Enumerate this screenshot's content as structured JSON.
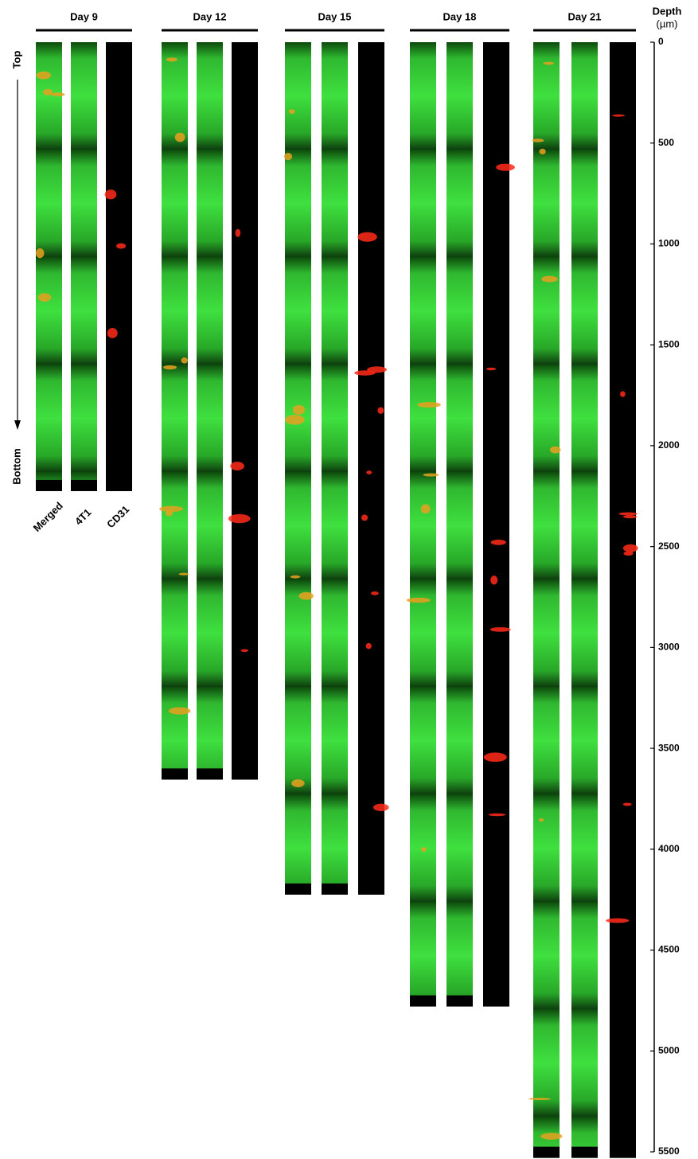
{
  "figure": {
    "panels": [
      {
        "label": "Day 9",
        "depth": 2225
      },
      {
        "label": "Day 12",
        "depth": 3655
      },
      {
        "label": "Day 15",
        "depth": 4225
      },
      {
        "label": "Day 18",
        "depth": 4780
      },
      {
        "label": "Day 21",
        "depth": 5530
      }
    ],
    "channels": [
      "Merged",
      "4T1",
      "CD31"
    ],
    "direction": {
      "top": "Top",
      "bottom": "Bottom"
    },
    "axis": {
      "title": "Depth",
      "unit": "(µm)",
      "lim": [
        0,
        5500
      ],
      "ticks": [
        0,
        500,
        1000,
        1500,
        2000,
        2500,
        3000,
        3500,
        4000,
        4500,
        5000,
        5500
      ]
    }
  }
}
